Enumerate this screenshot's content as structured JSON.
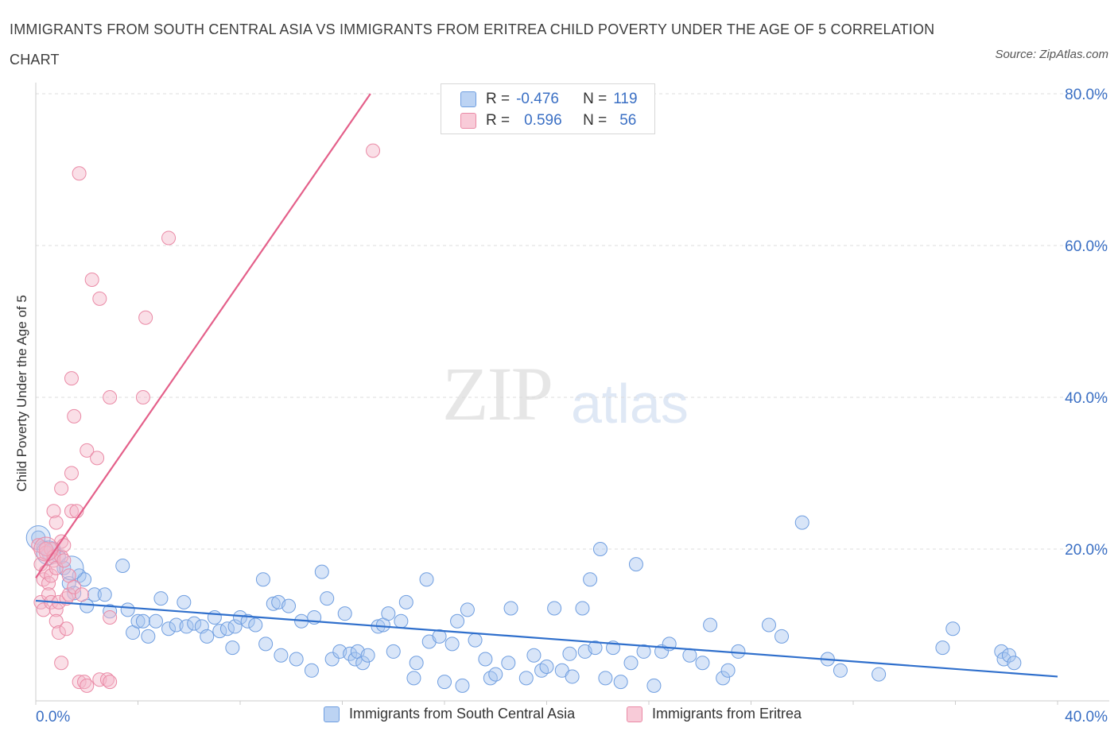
{
  "title": "IMMIGRANTS FROM SOUTH CENTRAL ASIA VS IMMIGRANTS FROM ERITREA CHILD POVERTY UNDER THE AGE OF 5 CORRELATION CHART",
  "source": "Source: ZipAtlas.com",
  "watermark": {
    "zip": "ZIP",
    "atlas": "atlas"
  },
  "stats": [
    {
      "r_label": "R =",
      "r_value": "-0.476",
      "n_label": "N =",
      "n_value": "119"
    },
    {
      "r_label": "R =",
      "r_value": "0.596",
      "n_label": "N =",
      "n_value": "56"
    }
  ],
  "colors": {
    "blue_fill": "#a9c6ef",
    "blue_stroke": "#6f9ee0",
    "blue_line": "#2f6fcc",
    "pink_fill": "#f5b8c9",
    "pink_stroke": "#ea8aa6",
    "pink_line": "#e4608a",
    "axis_text": "#3a6fc4",
    "grid": "#dcdcdc"
  },
  "chart_data": {
    "type": "scatter",
    "title": "IMMIGRANTS FROM SOUTH CENTRAL ASIA VS IMMIGRANTS FROM ERITREA CHILD POVERTY UNDER THE AGE OF 5 CORRELATION CHART",
    "xlabel": "",
    "ylabel": "Child Poverty Under the Age of 5",
    "xlim": [
      0,
      40
    ],
    "ylim": [
      0,
      80
    ],
    "x_tick_labels": [
      "0.0%",
      "40.0%"
    ],
    "y_tick_labels": [
      "20.0%",
      "40.0%",
      "60.0%",
      "80.0%"
    ],
    "y_ticks": [
      20,
      40,
      60,
      80
    ],
    "grid": true,
    "legend_position": "bottom",
    "series": [
      {
        "name": "Immigrants from South Central Asia",
        "color": "#6f9ee0",
        "trend": [
          [
            0,
            13.2
          ],
          [
            40,
            3.2
          ]
        ],
        "points": [
          [
            0.1,
            21.5
          ],
          [
            0.3,
            20.2
          ],
          [
            0.5,
            19.5
          ],
          [
            0.7,
            20.0
          ],
          [
            0.9,
            19.0
          ],
          [
            1.1,
            17.5
          ],
          [
            1.3,
            15.5
          ],
          [
            1.5,
            14.2
          ],
          [
            1.7,
            16.5
          ],
          [
            1.9,
            16.0
          ],
          [
            2.0,
            12.5
          ],
          [
            2.3,
            14.0
          ],
          [
            2.7,
            14.0
          ],
          [
            2.9,
            11.8
          ],
          [
            3.4,
            17.8
          ],
          [
            3.6,
            12.0
          ],
          [
            3.8,
            9.0
          ],
          [
            4.0,
            10.5
          ],
          [
            4.2,
            10.5
          ],
          [
            4.4,
            8.5
          ],
          [
            4.7,
            10.5
          ],
          [
            4.9,
            13.5
          ],
          [
            5.2,
            9.5
          ],
          [
            5.5,
            10.0
          ],
          [
            5.8,
            13.0
          ],
          [
            5.9,
            9.8
          ],
          [
            6.2,
            10.2
          ],
          [
            6.5,
            9.8
          ],
          [
            6.7,
            8.5
          ],
          [
            7.0,
            11.0
          ],
          [
            7.2,
            9.2
          ],
          [
            7.5,
            9.5
          ],
          [
            7.7,
            7.0
          ],
          [
            7.8,
            9.8
          ],
          [
            8.0,
            11.0
          ],
          [
            8.3,
            10.5
          ],
          [
            8.6,
            10.0
          ],
          [
            8.9,
            16.0
          ],
          [
            9.0,
            7.5
          ],
          [
            9.3,
            12.8
          ],
          [
            9.5,
            13.0
          ],
          [
            9.6,
            6.0
          ],
          [
            9.9,
            12.5
          ],
          [
            10.2,
            5.5
          ],
          [
            10.4,
            10.5
          ],
          [
            10.8,
            4.0
          ],
          [
            10.9,
            11.0
          ],
          [
            11.2,
            17.0
          ],
          [
            11.4,
            13.5
          ],
          [
            11.6,
            5.5
          ],
          [
            11.9,
            6.5
          ],
          [
            12.1,
            11.5
          ],
          [
            12.3,
            6.2
          ],
          [
            12.5,
            5.5
          ],
          [
            12.6,
            6.5
          ],
          [
            12.8,
            5.0
          ],
          [
            13.0,
            6.0
          ],
          [
            13.4,
            9.8
          ],
          [
            13.6,
            10.0
          ],
          [
            13.8,
            11.5
          ],
          [
            14.0,
            6.5
          ],
          [
            14.3,
            10.5
          ],
          [
            14.5,
            13.0
          ],
          [
            14.8,
            3.0
          ],
          [
            14.9,
            5.0
          ],
          [
            15.3,
            16.0
          ],
          [
            15.4,
            7.8
          ],
          [
            15.8,
            8.5
          ],
          [
            16.0,
            2.5
          ],
          [
            16.3,
            7.5
          ],
          [
            16.5,
            10.5
          ],
          [
            16.7,
            2.0
          ],
          [
            16.9,
            12.0
          ],
          [
            17.2,
            8.0
          ],
          [
            17.6,
            5.5
          ],
          [
            17.8,
            3.0
          ],
          [
            18.0,
            3.5
          ],
          [
            18.5,
            5.0
          ],
          [
            18.6,
            12.2
          ],
          [
            19.2,
            3.0
          ],
          [
            19.5,
            6.0
          ],
          [
            19.8,
            4.0
          ],
          [
            20.0,
            4.5
          ],
          [
            20.3,
            12.2
          ],
          [
            20.6,
            4.0
          ],
          [
            20.9,
            6.2
          ],
          [
            21.0,
            3.2
          ],
          [
            21.4,
            12.2
          ],
          [
            21.5,
            6.5
          ],
          [
            21.7,
            16.0
          ],
          [
            21.9,
            7.0
          ],
          [
            22.1,
            20.0
          ],
          [
            22.3,
            3.0
          ],
          [
            22.6,
            7.0
          ],
          [
            22.9,
            2.5
          ],
          [
            23.3,
            5.0
          ],
          [
            23.5,
            18.0
          ],
          [
            23.8,
            6.5
          ],
          [
            24.2,
            2.0
          ],
          [
            24.5,
            6.5
          ],
          [
            24.8,
            7.5
          ],
          [
            25.6,
            6.0
          ],
          [
            26.1,
            5.0
          ],
          [
            26.4,
            10.0
          ],
          [
            26.9,
            3.0
          ],
          [
            27.1,
            4.0
          ],
          [
            27.5,
            6.5
          ],
          [
            28.7,
            10.0
          ],
          [
            29.2,
            8.5
          ],
          [
            30.0,
            23.5
          ],
          [
            31.0,
            5.5
          ],
          [
            31.5,
            4.0
          ],
          [
            33.0,
            3.5
          ],
          [
            35.5,
            7.0
          ],
          [
            35.9,
            9.5
          ],
          [
            37.8,
            6.5
          ],
          [
            37.9,
            5.5
          ],
          [
            38.1,
            6.0
          ],
          [
            38.3,
            5.0
          ]
        ],
        "big_points": [
          [
            0.1,
            21.5
          ],
          [
            0.5,
            19.5
          ],
          [
            1.4,
            17.5
          ]
        ]
      },
      {
        "name": "Immigrants from Eritrea",
        "color": "#ea8aa6",
        "trend": [
          [
            0,
            16.2
          ],
          [
            13.1,
            80.0
          ]
        ],
        "points": [
          [
            0.1,
            20.5
          ],
          [
            0.2,
            18.0
          ],
          [
            0.2,
            13.0
          ],
          [
            0.3,
            12.0
          ],
          [
            0.3,
            16.0
          ],
          [
            0.4,
            17.0
          ],
          [
            0.4,
            19.5
          ],
          [
            0.5,
            15.5
          ],
          [
            0.5,
            14.0
          ],
          [
            0.6,
            13.0
          ],
          [
            0.6,
            20.0
          ],
          [
            0.6,
            16.5
          ],
          [
            0.7,
            19.0
          ],
          [
            0.7,
            18.5
          ],
          [
            0.7,
            25.0
          ],
          [
            0.8,
            17.5
          ],
          [
            0.8,
            23.5
          ],
          [
            0.8,
            12.0
          ],
          [
            0.8,
            10.5
          ],
          [
            0.9,
            13.0
          ],
          [
            0.9,
            9.0
          ],
          [
            1.0,
            5.0
          ],
          [
            1.0,
            21.0
          ],
          [
            1.0,
            19.0
          ],
          [
            1.1,
            20.5
          ],
          [
            1.0,
            28.0
          ],
          [
            1.1,
            18.5
          ],
          [
            1.2,
            13.5
          ],
          [
            1.2,
            9.5
          ],
          [
            1.3,
            14.0
          ],
          [
            1.3,
            16.5
          ],
          [
            1.4,
            25.0
          ],
          [
            1.4,
            30.0
          ],
          [
            1.4,
            42.5
          ],
          [
            1.5,
            15.0
          ],
          [
            1.5,
            37.5
          ],
          [
            1.6,
            25.0
          ],
          [
            1.7,
            2.5
          ],
          [
            1.7,
            69.5
          ],
          [
            1.8,
            14.0
          ],
          [
            1.9,
            2.5
          ],
          [
            2.0,
            2.0
          ],
          [
            2.0,
            33.0
          ],
          [
            2.2,
            55.5
          ],
          [
            2.4,
            32.0
          ],
          [
            2.5,
            53.0
          ],
          [
            2.5,
            2.8
          ],
          [
            2.8,
            2.8
          ],
          [
            2.9,
            40.0
          ],
          [
            2.9,
            11.0
          ],
          [
            2.9,
            2.5
          ],
          [
            4.2,
            40.0
          ],
          [
            4.3,
            50.5
          ],
          [
            5.2,
            61.0
          ],
          [
            13.2,
            72.5
          ],
          [
            0.4,
            20.0
          ]
        ],
        "big_points": [
          [
            0.4,
            20.0
          ]
        ]
      }
    ]
  }
}
